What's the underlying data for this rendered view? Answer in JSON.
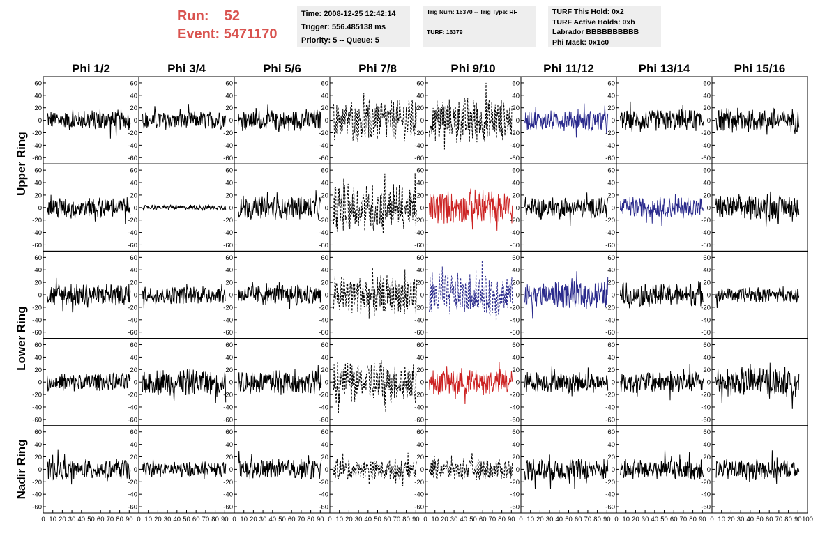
{
  "header": {
    "run_label": "Run:",
    "run_value": "52",
    "event_label": "Event:",
    "event_value": "5471170",
    "accent_color": "#d9534f"
  },
  "time_box": {
    "time": "Time: 2008-12-25 12:42:14",
    "trigger": "Trigger: 556.485138 ms",
    "priority": "Priority: 5 -- Queue: 5"
  },
  "trig_box": {
    "trig": "Trig Num: 16370 -- Trig Type: RF",
    "turf": "TURF: 16379"
  },
  "turf_box": {
    "this_hold": "TURF This Hold: 0x2",
    "active_holds": "TURF Active Holds: 0xb",
    "labrador": "Labrador BBBBBBBBBB",
    "phi_mask": "Phi Mask: 0x1c0"
  },
  "columns": [
    "Phi 1/2",
    "Phi 3/4",
    "Phi 5/6",
    "Phi 7/8",
    "Phi 9/10",
    "Phi 11/12",
    "Phi 13/14",
    "Phi 15/16"
  ],
  "rows": [
    "Upper Ring",
    "Lower Ring",
    "Nadir Ring"
  ],
  "colors": {
    "black": "#000000",
    "blue": "#2a2a8c",
    "red": "#cc2222",
    "frame": "#000000"
  },
  "chart_data": {
    "type": "line",
    "title": "",
    "xlabel": "",
    "ylabel": "",
    "xlim": [
      0,
      100
    ],
    "ylim": [
      -70,
      70
    ],
    "x_ticks": [
      0,
      10,
      20,
      30,
      40,
      50,
      60,
      70,
      80,
      90,
      100
    ],
    "x_tick_labels": [
      "0",
      "10",
      "20",
      "30",
      "40",
      "50",
      "60",
      "70",
      "80",
      "90",
      "100"
    ],
    "y_ticks": [
      -60,
      -40,
      -20,
      0,
      20,
      40,
      60
    ],
    "y_tick_labels": [
      "-60",
      "-40",
      "-20",
      "0",
      "20",
      "40",
      "60"
    ],
    "panels": [
      [
        {
          "amp": 14,
          "color": "black",
          "style": "solid"
        },
        {
          "amp": 12,
          "color": "black",
          "style": "solid"
        },
        {
          "amp": 14,
          "color": "black",
          "style": "solid"
        },
        {
          "amp": 28,
          "color": "black",
          "style": "dashed"
        },
        {
          "amp": 30,
          "color": "black",
          "style": "dashed"
        },
        {
          "amp": 14,
          "color": "blue",
          "style": "solid"
        },
        {
          "amp": 14,
          "color": "black",
          "style": "solid"
        },
        {
          "amp": 16,
          "color": "black",
          "style": "solid"
        }
      ],
      [
        {
          "amp": 14,
          "color": "black",
          "style": "solid"
        },
        {
          "amp": 3,
          "color": "black",
          "style": "solid"
        },
        {
          "amp": 16,
          "color": "black",
          "style": "solid"
        },
        {
          "amp": 32,
          "color": "black",
          "style": "dashed"
        },
        {
          "amp": 22,
          "color": "red",
          "style": "solid"
        },
        {
          "amp": 14,
          "color": "black",
          "style": "solid"
        },
        {
          "amp": 14,
          "color": "blue",
          "style": "solid"
        },
        {
          "amp": 16,
          "color": "black",
          "style": "solid"
        }
      ],
      [
        {
          "amp": 16,
          "color": "black",
          "style": "solid"
        },
        {
          "amp": 12,
          "color": "black",
          "style": "solid"
        },
        {
          "amp": 14,
          "color": "black",
          "style": "solid"
        },
        {
          "amp": 26,
          "color": "black",
          "style": "dashed"
        },
        {
          "amp": 28,
          "color": "blue",
          "style": "dashed"
        },
        {
          "amp": 18,
          "color": "blue",
          "style": "solid"
        },
        {
          "amp": 16,
          "color": "black",
          "style": "solid"
        },
        {
          "amp": 10,
          "color": "black",
          "style": "solid"
        }
      ],
      [
        {
          "amp": 12,
          "color": "black",
          "style": "solid"
        },
        {
          "amp": 18,
          "color": "black",
          "style": "solid"
        },
        {
          "amp": 16,
          "color": "black",
          "style": "solid"
        },
        {
          "amp": 28,
          "color": "black",
          "style": "dashed"
        },
        {
          "amp": 18,
          "color": "red",
          "style": "solid"
        },
        {
          "amp": 14,
          "color": "black",
          "style": "solid"
        },
        {
          "amp": 14,
          "color": "black",
          "style": "solid"
        },
        {
          "amp": 20,
          "color": "black",
          "style": "solid"
        }
      ],
      [
        {
          "amp": 14,
          "color": "black",
          "style": "solid"
        },
        {
          "amp": 10,
          "color": "black",
          "style": "solid"
        },
        {
          "amp": 14,
          "color": "black",
          "style": "solid"
        },
        {
          "amp": 14,
          "color": "black",
          "style": "dashed"
        },
        {
          "amp": 14,
          "color": "black",
          "style": "dashed"
        },
        {
          "amp": 16,
          "color": "black",
          "style": "solid"
        },
        {
          "amp": 14,
          "color": "black",
          "style": "solid"
        },
        {
          "amp": 14,
          "color": "black",
          "style": "solid"
        }
      ]
    ]
  }
}
